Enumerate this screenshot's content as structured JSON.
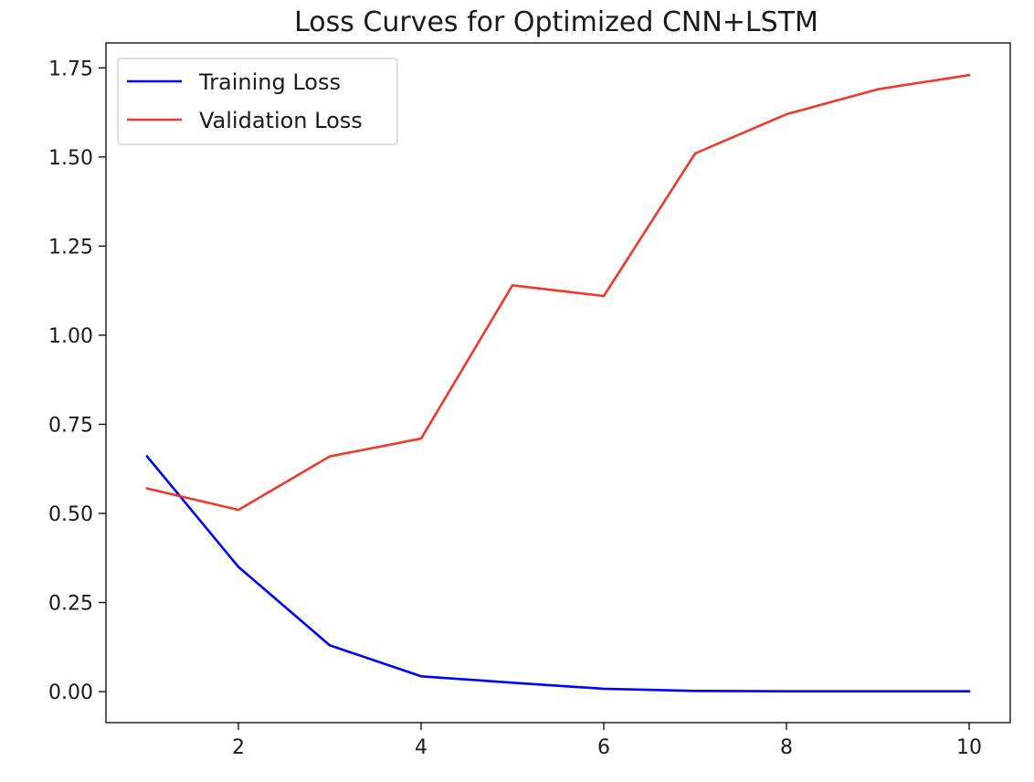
{
  "chart_data": {
    "type": "line",
    "title": "Loss Curves for Optimized CNN+LSTM",
    "xlabel": "",
    "ylabel": "",
    "x": [
      1,
      2,
      3,
      4,
      5,
      6,
      7,
      8,
      9,
      10
    ],
    "xlim": [
      0.55,
      10.45
    ],
    "ylim": [
      -0.087,
      1.82
    ],
    "x_ticks": [
      2,
      4,
      6,
      8,
      10
    ],
    "x_tick_labels": [
      "2",
      "4",
      "6",
      "8",
      "10"
    ],
    "y_ticks": [
      0.0,
      0.25,
      0.5,
      0.75,
      1.0,
      1.25,
      1.5,
      1.75
    ],
    "y_tick_labels": [
      "0.00",
      "0.25",
      "0.50",
      "0.75",
      "1.00",
      "1.25",
      "1.50",
      "1.75"
    ],
    "grid": false,
    "legend_position": "top-left",
    "series": [
      {
        "name": "Training Loss",
        "color": "#0000ff",
        "values": [
          0.66,
          0.35,
          0.13,
          0.043,
          0.025,
          0.008,
          0.002,
          0.001,
          0.001,
          0.001
        ]
      },
      {
        "name": "Validation Loss",
        "color": "#ee3a2c",
        "values": [
          0.57,
          0.51,
          0.66,
          0.71,
          1.14,
          1.11,
          1.51,
          1.62,
          1.69,
          1.73
        ]
      }
    ]
  }
}
